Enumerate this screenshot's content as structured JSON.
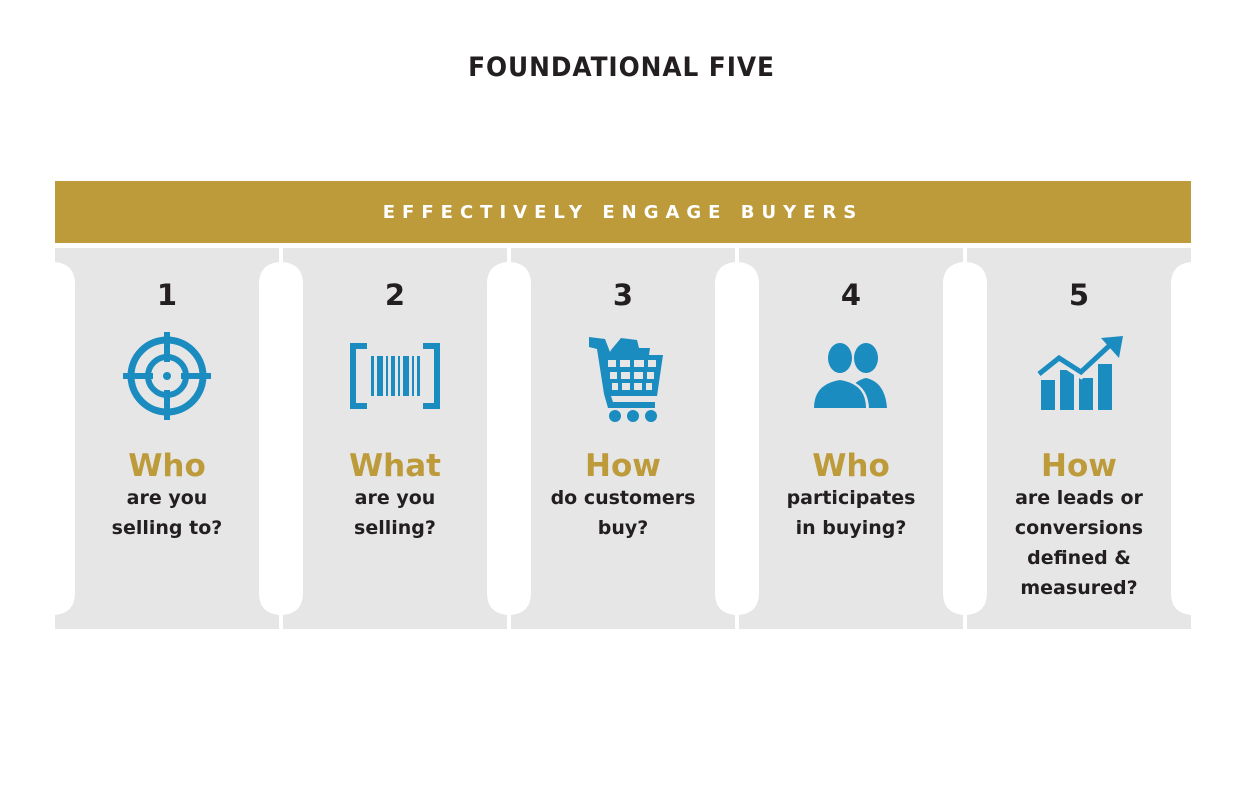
{
  "title": "FOUNDATIONAL FIVE",
  "banner": "EFFECTIVELY ENGAGE BUYERS",
  "colors": {
    "gold": "#bd9a3a",
    "blue": "#1a8cc0",
    "pillar_gray": "#e6e6e6",
    "text_dark": "#231f20"
  },
  "pillars": [
    {
      "number": "1",
      "icon": "target-icon",
      "heading": "Who",
      "body": "are you\nselling to?"
    },
    {
      "number": "2",
      "icon": "barcode-icon",
      "heading": "What",
      "body": "are you\nselling?"
    },
    {
      "number": "3",
      "icon": "shopping-cart-icon",
      "heading": "How",
      "body": "do customers\nbuy?"
    },
    {
      "number": "4",
      "icon": "people-icon",
      "heading": "Who",
      "body": "participates\nin buying?"
    },
    {
      "number": "5",
      "icon": "growth-chart-icon",
      "heading": "How",
      "body": "are leads or\nconversions\ndefined &\nmeasured?"
    }
  ]
}
